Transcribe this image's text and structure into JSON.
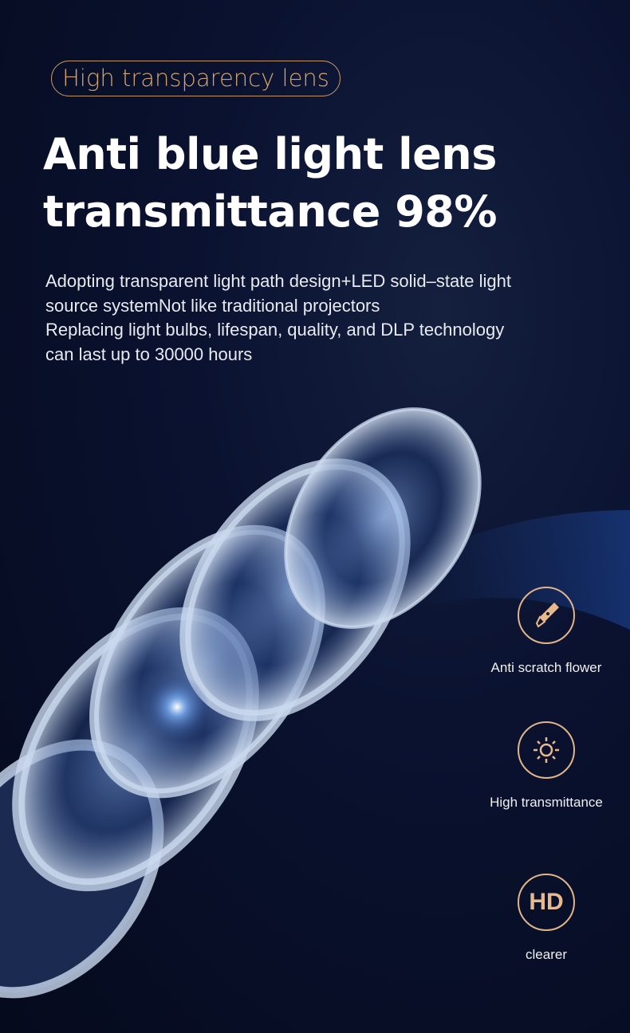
{
  "badge": "High transparency lens",
  "title": {
    "line1": "Anti blue light lens",
    "line2": "transmittance 98%"
  },
  "description": [
    "Adopting transparent light path design+LED solid–state light",
    "source systemNot like traditional projectors",
    "Replacing light bulbs, lifespan, quality, and DLP technology",
    "can last up to 30000 hours"
  ],
  "features": [
    {
      "icon": "utility-knife-icon",
      "label": "Anti scratch flower"
    },
    {
      "icon": "sun-icon",
      "label": "High transmittance"
    },
    {
      "icon": "hd-icon",
      "icon_text": "HD",
      "label": "clearer"
    }
  ],
  "colors": {
    "accent": "#d4a46d",
    "background": "#060c22"
  }
}
